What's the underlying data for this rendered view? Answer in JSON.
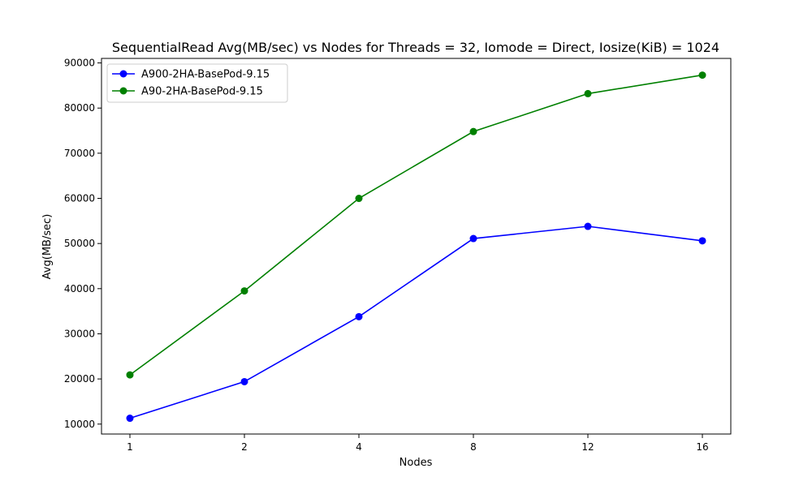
{
  "chart_data": {
    "type": "line",
    "title": "SequentialRead Avg(MB/sec) vs Nodes for Threads = 32, Iomode = Direct, Iosize(KiB) = 1024",
    "xlabel": "Nodes",
    "ylabel": "Avg(MB/sec)",
    "categories": [
      "1",
      "2",
      "4",
      "8",
      "12",
      "16"
    ],
    "ylim": [
      7800,
      91000
    ],
    "yticks": [
      "10000",
      "20000",
      "30000",
      "40000",
      "50000",
      "60000",
      "70000",
      "80000",
      "90000"
    ],
    "grid": false,
    "legend_position": "top-left",
    "series": [
      {
        "name": "A900-2HA-BasePod-9.15",
        "color": "#0000ff",
        "values": [
          11300,
          19400,
          33800,
          51100,
          53800,
          50600
        ]
      },
      {
        "name": "A90-2HA-BasePod-9.15",
        "color": "#008000",
        "values": [
          20900,
          39500,
          60000,
          74800,
          83200,
          87300
        ]
      }
    ]
  }
}
